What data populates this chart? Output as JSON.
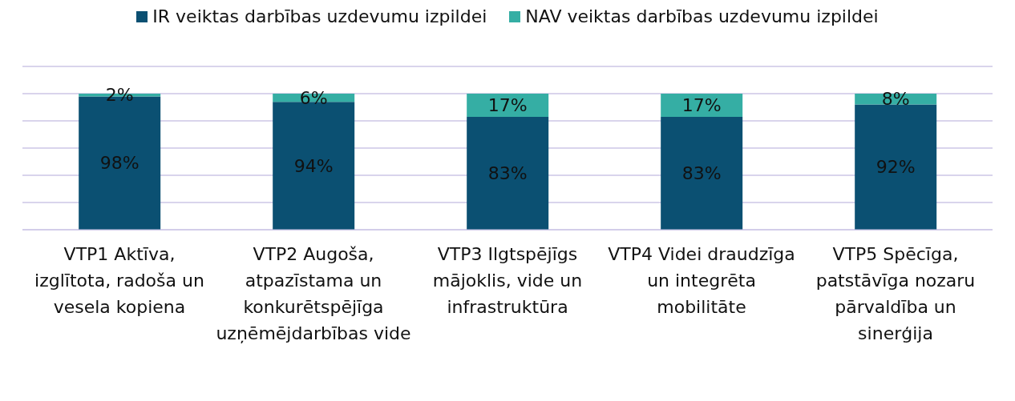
{
  "chart_data": {
    "type": "bar",
    "stacked": true,
    "categories": [
      "VTP1 Aktīva, izglītota, radoša un vesela kopiena",
      "VTP2 Augoša, atpazīstama un konkurētspējīga uzņēmējdarbības vide",
      "VTP3 Ilgtspējīgs mājoklis, vide un infrastruktūra",
      "VTP4 Videi draudzīga un integrēta mobilitāte",
      "VTP5 Spēcīga, patstāvīga nozaru pārvaldība un sinerģija"
    ],
    "series": [
      {
        "name": "IR veiktas darbības uzdevumu izpildei",
        "color": "#0b5072",
        "values": [
          98,
          94,
          83,
          83,
          92
        ],
        "value_labels": [
          "98%",
          "94%",
          "83%",
          "83%",
          "92%"
        ]
      },
      {
        "name": "NAV veiktas darbības uzdevumu izpildei",
        "color": "#35aea4",
        "values": [
          2,
          6,
          17,
          17,
          8
        ],
        "value_labels": [
          "2%",
          "6%",
          "17%",
          "17%",
          "8%"
        ]
      }
    ],
    "ylim": [
      0,
      120
    ],
    "tick_labels": "x",
    "grid": "y",
    "legend": "top"
  }
}
